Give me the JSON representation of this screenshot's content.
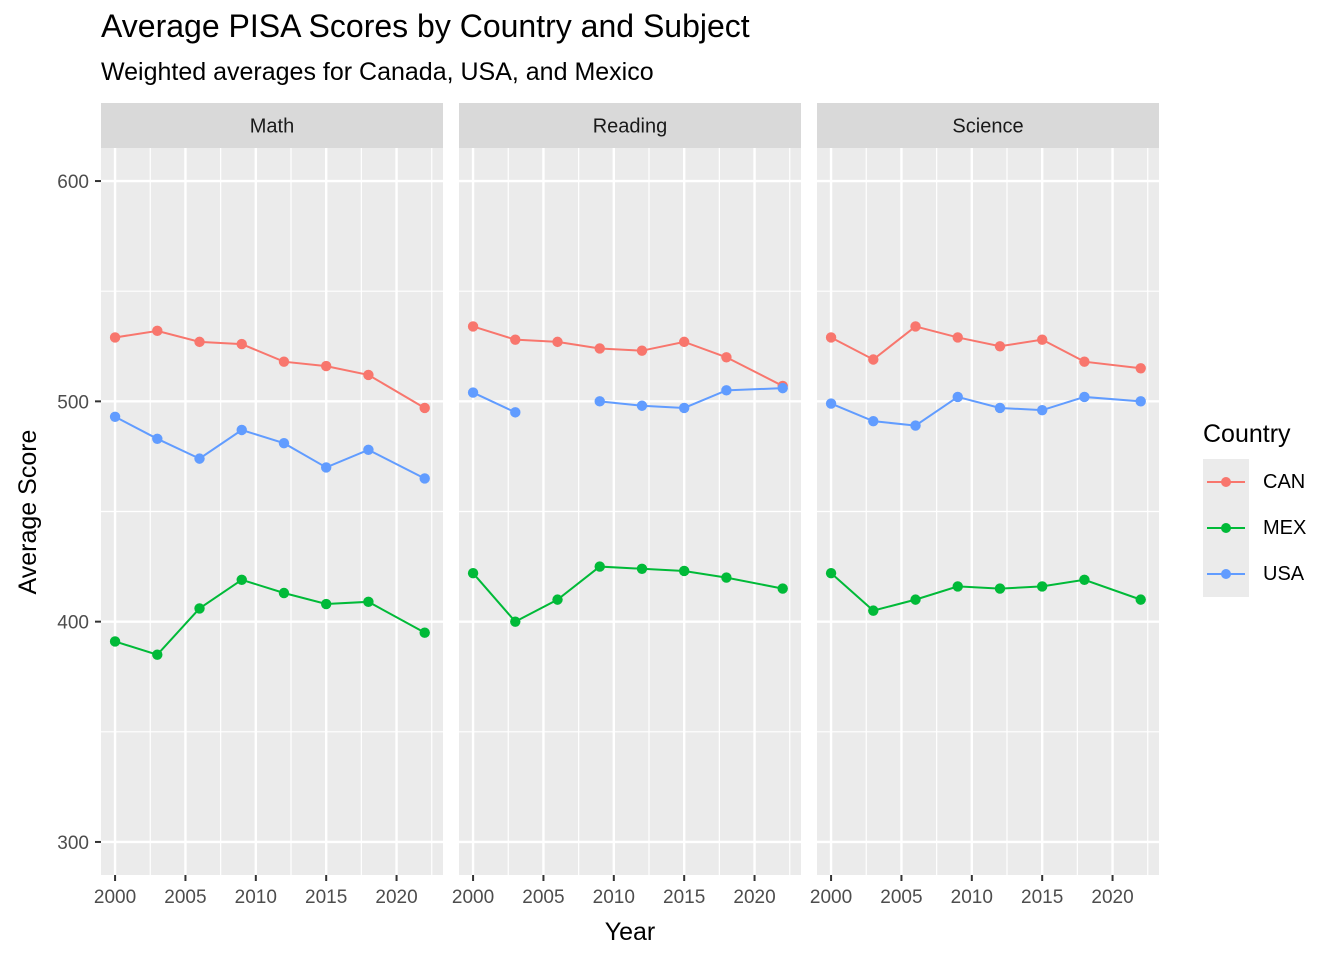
{
  "chart_data": {
    "type": "line",
    "title": "Average PISA Scores by Country and Subject",
    "subtitle": "Weighted averages for Canada, USA, and Mexico",
    "xlabel": "Year",
    "ylabel": "Average Score",
    "xlim": [
      1999,
      2023.3
    ],
    "ylim": [
      285,
      615
    ],
    "x_ticks": [
      2000,
      2005,
      2010,
      2015,
      2020
    ],
    "y_ticks": [
      300,
      400,
      500,
      600
    ],
    "grid": true,
    "legend": {
      "title": "Country",
      "placement": "right",
      "entries": [
        {
          "name": "CAN",
          "color": "#F8766D"
        },
        {
          "name": "MEX",
          "color": "#00BA38"
        },
        {
          "name": "USA",
          "color": "#619CFF"
        }
      ]
    },
    "panels": [
      {
        "label": "Math",
        "series": [
          {
            "name": "CAN",
            "points": [
              [
                2000,
                529
              ],
              [
                2003,
                532
              ],
              [
                2006,
                527
              ],
              [
                2009,
                526
              ],
              [
                2012,
                518
              ],
              [
                2015,
                516
              ],
              [
                2018,
                512
              ],
              [
                2022,
                497
              ]
            ]
          },
          {
            "name": "MEX",
            "points": [
              [
                2000,
                391
              ],
              [
                2003,
                385
              ],
              [
                2006,
                406
              ],
              [
                2009,
                419
              ],
              [
                2012,
                413
              ],
              [
                2015,
                408
              ],
              [
                2018,
                409
              ],
              [
                2022,
                395
              ]
            ]
          },
          {
            "name": "USA",
            "points": [
              [
                2000,
                493
              ],
              [
                2003,
                483
              ],
              [
                2006,
                474
              ],
              [
                2009,
                487
              ],
              [
                2012,
                481
              ],
              [
                2015,
                470
              ],
              [
                2018,
                478
              ],
              [
                2022,
                465
              ]
            ]
          }
        ]
      },
      {
        "label": "Reading",
        "series": [
          {
            "name": "CAN",
            "points": [
              [
                2000,
                534
              ],
              [
                2003,
                528
              ],
              [
                2006,
                527
              ],
              [
                2009,
                524
              ],
              [
                2012,
                523
              ],
              [
                2015,
                527
              ],
              [
                2018,
                520
              ],
              [
                2022,
                507
              ]
            ]
          },
          {
            "name": "MEX",
            "points": [
              [
                2000,
                422
              ],
              [
                2003,
                400
              ],
              [
                2006,
                410
              ],
              [
                2009,
                425
              ],
              [
                2012,
                424
              ],
              [
                2015,
                423
              ],
              [
                2018,
                420
              ],
              [
                2022,
                415
              ]
            ]
          },
          {
            "name": "USA",
            "points": [
              [
                2000,
                504
              ],
              [
                2003,
                495
              ],
              [
                2006,
                null
              ],
              [
                2009,
                500
              ],
              [
                2012,
                498
              ],
              [
                2015,
                497
              ],
              [
                2018,
                505
              ],
              [
                2022,
                506
              ]
            ]
          }
        ]
      },
      {
        "label": "Science",
        "series": [
          {
            "name": "CAN",
            "points": [
              [
                2000,
                529
              ],
              [
                2003,
                519
              ],
              [
                2006,
                534
              ],
              [
                2009,
                529
              ],
              [
                2012,
                525
              ],
              [
                2015,
                528
              ],
              [
                2018,
                518
              ],
              [
                2022,
                515
              ]
            ]
          },
          {
            "name": "MEX",
            "points": [
              [
                2000,
                422
              ],
              [
                2003,
                405
              ],
              [
                2006,
                410
              ],
              [
                2009,
                416
              ],
              [
                2012,
                415
              ],
              [
                2015,
                416
              ],
              [
                2018,
                419
              ],
              [
                2022,
                410
              ]
            ]
          },
          {
            "name": "USA",
            "points": [
              [
                2000,
                499
              ],
              [
                2003,
                491
              ],
              [
                2006,
                489
              ],
              [
                2009,
                502
              ],
              [
                2012,
                497
              ],
              [
                2015,
                496
              ],
              [
                2018,
                502
              ],
              [
                2022,
                500
              ]
            ]
          }
        ]
      }
    ]
  }
}
